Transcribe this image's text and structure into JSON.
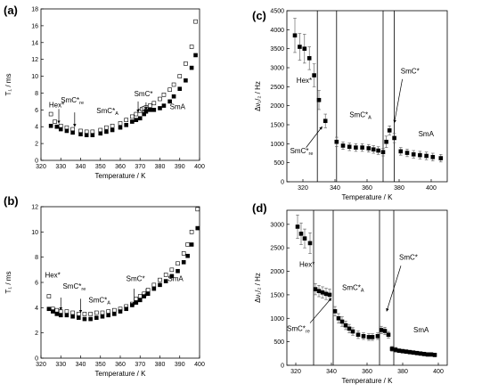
{
  "chart_data": [
    {
      "panel": "(a)",
      "type": "scatter",
      "ylabel": "T₁ / ms",
      "xlabel": "Temperature / K",
      "xlim": [
        320,
        400
      ],
      "ylim": [
        0,
        18
      ],
      "xticks": [
        320,
        330,
        340,
        350,
        360,
        370,
        380,
        390,
        400
      ],
      "yticks": [
        0,
        2,
        4,
        6,
        8,
        10,
        12,
        14,
        16,
        18
      ],
      "grid": false,
      "series": [
        {
          "marker": "open-square",
          "x": [
            325,
            327,
            330,
            333,
            336,
            340,
            343,
            346,
            350,
            353,
            356,
            360,
            363,
            366,
            368,
            370,
            371,
            372,
            373,
            375,
            377,
            380,
            382,
            385,
            387,
            390,
            393,
            396,
            398
          ],
          "y": [
            5.5,
            4.6,
            4.1,
            3.9,
            3.7,
            3.5,
            3.4,
            3.4,
            3.6,
            3.9,
            4.1,
            4.4,
            4.8,
            5.2,
            5.5,
            5.9,
            6.1,
            6.2,
            6.3,
            6.5,
            6.8,
            7.3,
            7.8,
            8.4,
            9.0,
            10.0,
            11.5,
            13.5,
            16.5
          ]
        },
        {
          "marker": "filled-square",
          "x": [
            325,
            328,
            330,
            333,
            336,
            340,
            343,
            346,
            350,
            353,
            356,
            360,
            363,
            366,
            368,
            370,
            372,
            373,
            375,
            377,
            380,
            382,
            385,
            387,
            390,
            393,
            396,
            398
          ],
          "y": [
            4.1,
            4.0,
            3.7,
            3.5,
            3.3,
            3.1,
            3.0,
            3.0,
            3.2,
            3.4,
            3.6,
            3.9,
            4.2,
            4.6,
            4.8,
            5.0,
            5.5,
            5.8,
            6.0,
            6.0,
            6.2,
            6.5,
            7.0,
            7.6,
            8.5,
            9.5,
            11.0,
            12.5
          ]
        }
      ],
      "annotations": [
        {
          "text": "Hex*",
          "x": 324,
          "y": 6.3
        },
        {
          "text": "SmC*",
          "sub": "re",
          "x": 330,
          "y": 6.9
        },
        {
          "text": "SmC*",
          "sub": "A",
          "x": 348,
          "y": 5.6
        },
        {
          "text": "SmC*",
          "x": 367,
          "y": 7.6
        },
        {
          "text": "SmA",
          "x": 385,
          "y": 6.1
        }
      ],
      "arrows": [
        {
          "x1": 329,
          "y1": 6.1,
          "x2": 329,
          "y2": 4.4
        },
        {
          "x1": 337,
          "y1": 5.7,
          "x2": 337,
          "y2": 4.0
        },
        {
          "x1": 369,
          "y1": 7.0,
          "x2": 369,
          "y2": 5.7
        },
        {
          "x1": 373,
          "y1": 6.9,
          "x2": 373,
          "y2": 6.0
        }
      ]
    },
    {
      "panel": "(b)",
      "type": "scatter",
      "ylabel": "T₁ / ms",
      "xlabel": "Temperature / K",
      "xlim": [
        320,
        400
      ],
      "ylim": [
        0,
        12
      ],
      "xticks": [
        320,
        330,
        340,
        350,
        360,
        370,
        380,
        390,
        400
      ],
      "yticks": [
        0,
        2,
        4,
        6,
        8,
        10,
        12
      ],
      "grid": false,
      "series": [
        {
          "marker": "open-square",
          "x": [
            324,
            326,
            328,
            330,
            333,
            336,
            339,
            342,
            345,
            348,
            351,
            354,
            357,
            360,
            363,
            366,
            368,
            370,
            372,
            374,
            377,
            380,
            383,
            386,
            389,
            392,
            394,
            396,
            399
          ],
          "y": [
            4.9,
            3.9,
            3.8,
            3.7,
            3.7,
            3.6,
            3.5,
            3.5,
            3.5,
            3.6,
            3.6,
            3.7,
            3.8,
            3.9,
            4.1,
            4.3,
            4.7,
            4.9,
            5.1,
            5.4,
            5.8,
            6.2,
            6.6,
            7.0,
            7.5,
            8.3,
            9.0,
            10.0,
            11.8
          ]
        },
        {
          "marker": "filled-square",
          "x": [
            324,
            326,
            328,
            330,
            333,
            336,
            339,
            342,
            345,
            348,
            351,
            354,
            357,
            360,
            363,
            366,
            368,
            370,
            372,
            374,
            377,
            380,
            383,
            386,
            389,
            392,
            394,
            396,
            399
          ],
          "y": [
            3.9,
            3.7,
            3.5,
            3.4,
            3.4,
            3.3,
            3.2,
            3.1,
            3.1,
            3.2,
            3.3,
            3.4,
            3.5,
            3.7,
            3.9,
            4.2,
            4.4,
            4.6,
            4.9,
            5.1,
            5.5,
            5.8,
            6.1,
            6.5,
            6.9,
            7.6,
            8.1,
            9.0,
            10.3
          ]
        }
      ],
      "annotations": [
        {
          "text": "Hex*",
          "x": 322,
          "y": 6.4
        },
        {
          "text": "SmC*",
          "sub": "re",
          "x": 331,
          "y": 5.5
        },
        {
          "text": "SmC*",
          "sub": "A",
          "x": 344,
          "y": 4.4
        },
        {
          "text": "SmC*",
          "x": 363,
          "y": 6.1
        },
        {
          "text": "SmA",
          "x": 384,
          "y": 6.1
        }
      ],
      "arrows": [
        {
          "x1": 330,
          "y1": 4.8,
          "x2": 330,
          "y2": 3.8
        },
        {
          "x1": 340,
          "y1": 4.7,
          "x2": 340,
          "y2": 3.6
        },
        {
          "x1": 367,
          "y1": 5.5,
          "x2": 367,
          "y2": 4.2
        },
        {
          "x1": 373,
          "y1": 5.5,
          "x2": 373,
          "y2": 4.9
        }
      ]
    },
    {
      "panel": "(c)",
      "type": "scatter",
      "ylabel": "Δν₁/₂ / Hz",
      "xlabel": "Temperature / K",
      "xlim": [
        310,
        410
      ],
      "ylim": [
        0,
        4500
      ],
      "xticks": [
        320,
        340,
        360,
        380,
        400
      ],
      "yticks": [
        0,
        500,
        1000,
        1500,
        2000,
        2500,
        3000,
        3500,
        4000,
        4500
      ],
      "grid": false,
      "vlines": [
        329,
        341,
        370,
        377
      ],
      "series": [
        {
          "marker": "filled-square-errorbar",
          "x": [
            315,
            318,
            321,
            324,
            327,
            330,
            334,
            341,
            345,
            349,
            353,
            357,
            361,
            364,
            367,
            370,
            372,
            374,
            377,
            381,
            385,
            389,
            393,
            397,
            401,
            406
          ],
          "y": [
            3850,
            3550,
            3500,
            3250,
            2800,
            2150,
            1600,
            1050,
            950,
            920,
            900,
            900,
            880,
            850,
            820,
            780,
            1050,
            1350,
            1150,
            800,
            760,
            720,
            700,
            680,
            650,
            620
          ],
          "err": [
            450,
            350,
            380,
            300,
            300,
            250,
            180,
            120,
            100,
            100,
            100,
            100,
            100,
            100,
            100,
            100,
            150,
            120,
            120,
            100,
            100,
            100,
            100,
            100,
            100,
            100
          ]
        }
      ],
      "annotations": [
        {
          "text": "Hex*",
          "x": 316,
          "y": 2600
        },
        {
          "text": "SmC*",
          "sub": "re",
          "x": 312,
          "y": 750
        },
        {
          "text": "SmC*",
          "sub": "A",
          "x": 349,
          "y": 1700
        },
        {
          "text": "SmC*",
          "x": 381,
          "y": 2850
        },
        {
          "text": "SmA",
          "x": 392,
          "y": 1200
        }
      ],
      "arrows": [
        {
          "x1": 322,
          "y1": 900,
          "x2": 332,
          "y2": 1450
        },
        {
          "x1": 382,
          "y1": 2700,
          "x2": 377,
          "y2": 1550
        }
      ]
    },
    {
      "panel": "(d)",
      "type": "scatter",
      "ylabel": "Δν₁/₂ / Hz",
      "xlabel": "Temperature / K",
      "xlim": [
        315,
        405
      ],
      "ylim": [
        0,
        3300
      ],
      "xticks": [
        320,
        340,
        360,
        380,
        400
      ],
      "yticks": [
        0,
        500,
        1000,
        1500,
        2000,
        2500,
        3000
      ],
      "grid": false,
      "vlines": [
        330,
        341,
        367,
        375
      ],
      "series": [
        {
          "marker": "filled-square-errorbar",
          "x": [
            321,
            323,
            325,
            328,
            331,
            333,
            335,
            337,
            339,
            342,
            344,
            346,
            348,
            350,
            352,
            355,
            358,
            361,
            363,
            366,
            368,
            370,
            372,
            374,
            376,
            378,
            380,
            382,
            384,
            386,
            388,
            390,
            392,
            394,
            396,
            398
          ],
          "y": [
            2950,
            2800,
            2700,
            2600,
            1620,
            1580,
            1550,
            1520,
            1500,
            1150,
            1000,
            930,
            850,
            780,
            720,
            650,
            620,
            600,
            600,
            620,
            750,
            730,
            650,
            350,
            330,
            310,
            300,
            290,
            280,
            270,
            260,
            250,
            240,
            230,
            230,
            220
          ],
          "err": [
            250,
            230,
            200,
            220,
            120,
            120,
            120,
            120,
            120,
            100,
            100,
            100,
            90,
            90,
            80,
            80,
            70,
            70,
            70,
            70,
            80,
            80,
            70,
            50,
            50,
            40,
            40,
            40,
            40,
            40,
            40,
            40,
            40,
            40,
            40,
            40
          ]
        }
      ],
      "annotations": [
        {
          "text": "Hex*",
          "x": 322,
          "y": 2100
        },
        {
          "text": "SmC*",
          "sub": "re",
          "x": 315,
          "y": 730
        },
        {
          "text": "SmC*",
          "sub": "A",
          "x": 346,
          "y": 1600
        },
        {
          "text": "SmC*",
          "x": 378,
          "y": 2250
        },
        {
          "text": "SmA",
          "x": 386,
          "y": 700
        }
      ],
      "arrows": [
        {
          "x1": 328,
          "y1": 900,
          "x2": 340,
          "y2": 1430
        },
        {
          "x1": 379,
          "y1": 2120,
          "x2": 371,
          "y2": 1150
        }
      ]
    }
  ]
}
